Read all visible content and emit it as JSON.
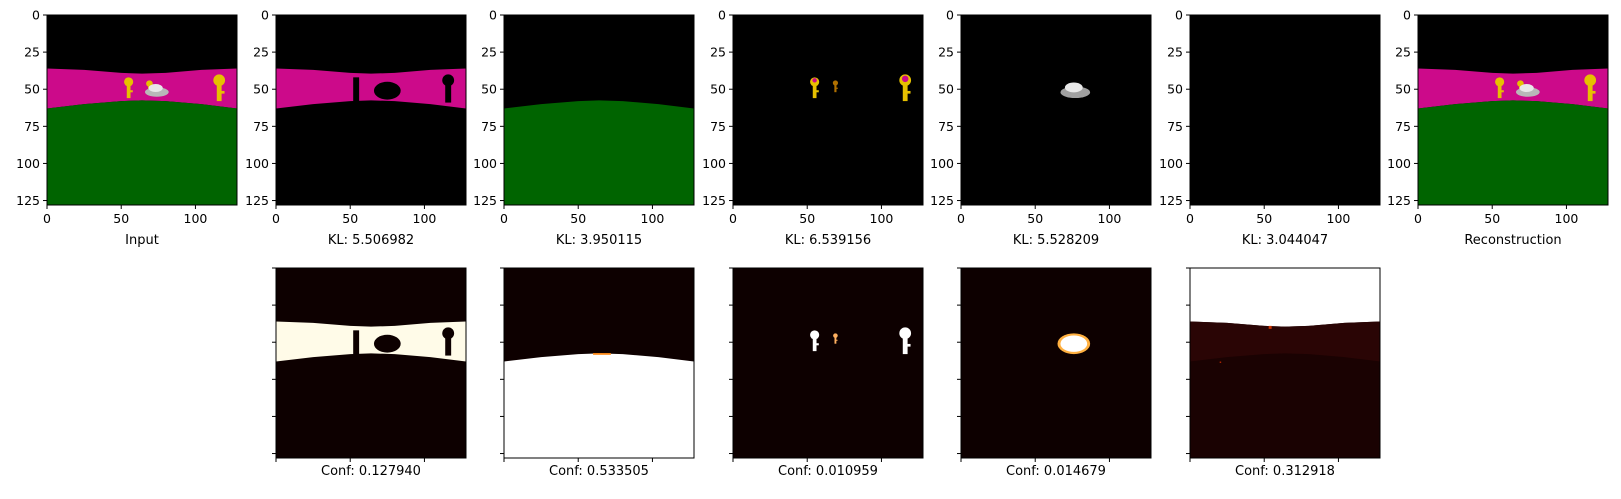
{
  "chart_data": {
    "type": "heatmap",
    "panels_top": [
      {
        "id": "input",
        "caption": "Input",
        "content": "scene"
      },
      {
        "id": "slot1",
        "caption": "KL: 5.506982",
        "content": "slot1"
      },
      {
        "id": "slot2",
        "caption": "KL: 3.950115",
        "content": "slot2"
      },
      {
        "id": "slot3",
        "caption": "KL: 6.539156",
        "content": "slot3"
      },
      {
        "id": "slot4",
        "caption": "KL: 5.528209",
        "content": "slot4"
      },
      {
        "id": "slot5",
        "caption": "KL: 3.044047",
        "content": "slot5"
      },
      {
        "id": "recon",
        "caption": "Reconstruction",
        "content": "scene"
      }
    ],
    "panels_bottom": [
      {
        "id": "conf1",
        "caption": "Conf: 0.127940",
        "content": "conf1"
      },
      {
        "id": "conf2",
        "caption": "Conf: 0.533505",
        "content": "conf2"
      },
      {
        "id": "conf3",
        "caption": "Conf: 0.010959",
        "content": "conf3"
      },
      {
        "id": "conf4",
        "caption": "Conf: 0.014679",
        "content": "conf4"
      },
      {
        "id": "conf5",
        "caption": "Conf: 0.312918",
        "content": "conf5"
      }
    ],
    "x_ticks": [
      0,
      50,
      100
    ],
    "y_ticks": [
      0,
      25,
      50,
      75,
      100,
      125
    ],
    "xlim": [
      0,
      128
    ],
    "ylim": [
      128,
      0
    ],
    "colors": {
      "background": "#000000",
      "wall": "#cc0a8a",
      "floor": "#006400",
      "key": "#e6c000",
      "car": "#b8b8b8",
      "heat_low": "#0d0000",
      "heat_high": "#ffffff"
    }
  }
}
